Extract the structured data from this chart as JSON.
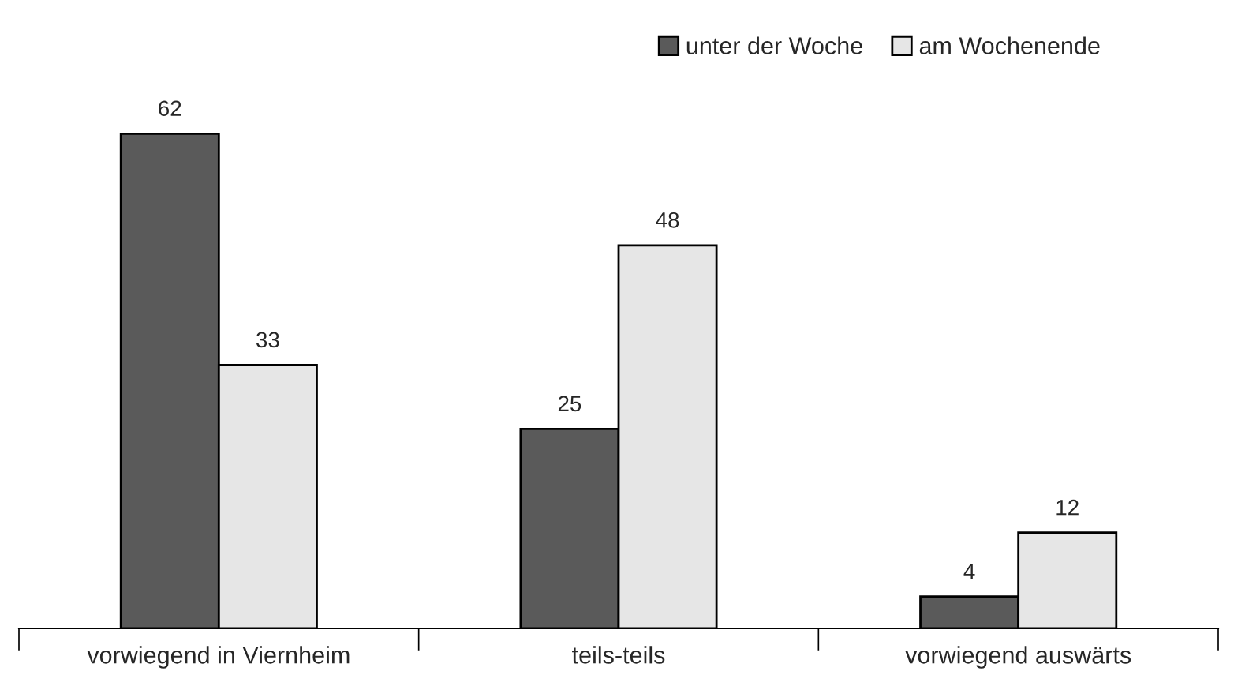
{
  "chart_data": {
    "type": "bar",
    "categories": [
      "vorwiegend in Viernheim",
      "teils-teils",
      "vorwiegend auswärts"
    ],
    "series": [
      {
        "name": "unter der Woche",
        "color": "#5a5a5a",
        "values": [
          62,
          25,
          4
        ]
      },
      {
        "name": "am Wochenende",
        "color": "#e6e6e6",
        "values": [
          33,
          48,
          12
        ]
      }
    ],
    "data_labels": true,
    "legend": "top right",
    "grid": false
  }
}
